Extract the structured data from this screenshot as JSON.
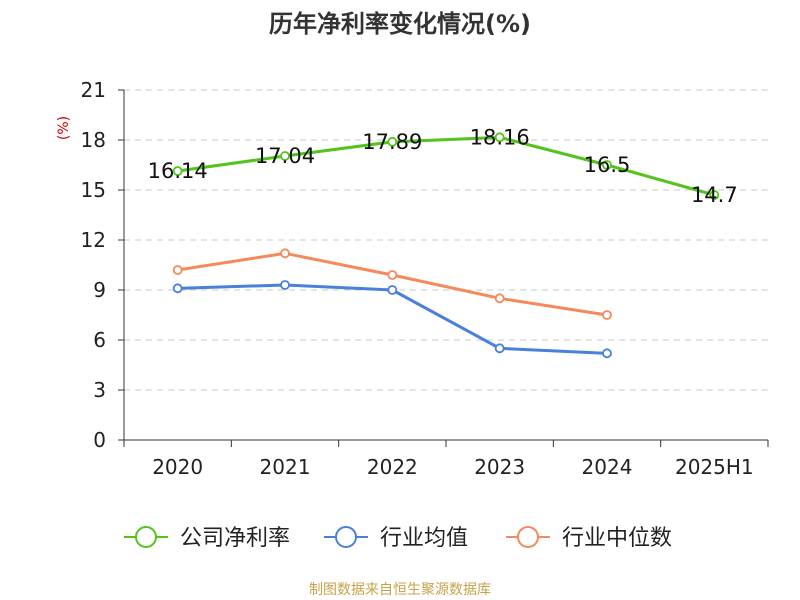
{
  "chart_data": {
    "type": "line",
    "title": "历年净利率变化情况(%)",
    "ylabel": "(%)",
    "categories": [
      "2020",
      "2021",
      "2022",
      "2023",
      "2024",
      "2025H1"
    ],
    "ylim": [
      0,
      21
    ],
    "yticks": [
      "0",
      "3",
      "6",
      "9",
      "12",
      "15",
      "18",
      "21"
    ],
    "grid": true,
    "legend_position": "bottom",
    "series": [
      {
        "name": "公司净利率",
        "color": "#52c41a",
        "values": [
          16.14,
          17.04,
          17.89,
          18.16,
          16.5,
          14.7
        ],
        "labels": [
          "16.14",
          "17.04",
          "17.89",
          "18.16",
          "16.5",
          "14.7"
        ]
      },
      {
        "name": "行业均值",
        "color": "#4a7fdc",
        "values": [
          9.1,
          9.3,
          9.0,
          5.5,
          5.2,
          null
        ]
      },
      {
        "name": "行业中位数",
        "color": "#f5895a",
        "values": [
          10.2,
          11.2,
          9.9,
          8.5,
          7.5,
          null
        ]
      }
    ]
  },
  "footer": {
    "source": "制图数据来自恒生聚源数据库"
  }
}
